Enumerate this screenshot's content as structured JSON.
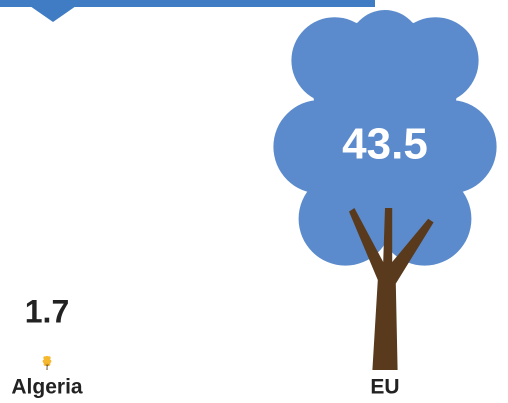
{
  "chart_data": {
    "type": "pictorial",
    "categories": [
      "Algeria",
      "EU"
    ],
    "values": [
      1.7,
      43.5
    ],
    "colors": [
      "#f5b82e",
      "#5b8bcc"
    ]
  }
}
